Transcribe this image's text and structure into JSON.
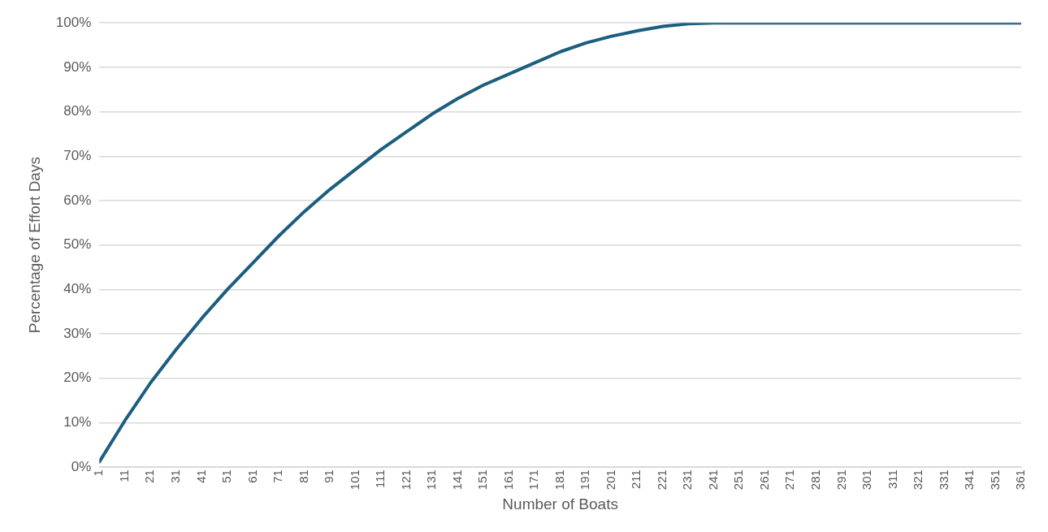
{
  "chart_data": {
    "type": "line",
    "xlabel": "Number of Boats",
    "ylabel": "Percentage of Effort Days",
    "x": [
      1,
      11,
      21,
      31,
      41,
      51,
      61,
      71,
      81,
      91,
      101,
      111,
      121,
      131,
      141,
      151,
      161,
      171,
      181,
      191,
      201,
      211,
      221,
      231,
      241,
      361
    ],
    "series": [
      {
        "color": "#1b5e7e",
        "values": [
          1.2,
          10.5,
          19,
          26.5,
          33.5,
          40,
          46,
          52,
          57.5,
          62.5,
          67,
          71.5,
          75.5,
          79.5,
          83,
          86,
          88.5,
          91,
          93.5,
          95.5,
          97,
          98.2,
          99.2,
          99.8,
          100,
          100
        ]
      }
    ],
    "xlim": [
      1,
      361
    ],
    "xticks": [
      1,
      11,
      21,
      31,
      41,
      51,
      61,
      71,
      81,
      91,
      101,
      111,
      121,
      131,
      141,
      151,
      161,
      171,
      181,
      191,
      201,
      211,
      221,
      231,
      241,
      251,
      261,
      271,
      281,
      291,
      301,
      311,
      321,
      331,
      341,
      351,
      361
    ],
    "ylim": [
      0,
      100
    ],
    "yticks": [
      {
        "value": 0,
        "label": "0%"
      },
      {
        "value": 10,
        "label": "10%"
      },
      {
        "value": 20,
        "label": "20%"
      },
      {
        "value": 30,
        "label": "30%"
      },
      {
        "value": 40,
        "label": "40%"
      },
      {
        "value": 50,
        "label": "50%"
      },
      {
        "value": 60,
        "label": "60%"
      },
      {
        "value": 70,
        "label": "70%"
      },
      {
        "value": 80,
        "label": "80%"
      },
      {
        "value": 90,
        "label": "90%"
      },
      {
        "value": 100,
        "label": "100%"
      }
    ],
    "grid": "y",
    "legend": false,
    "marker": "none",
    "line_style": "solid"
  }
}
